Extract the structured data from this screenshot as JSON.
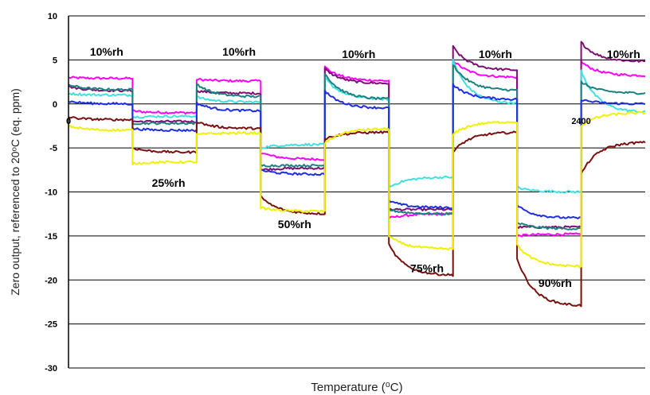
{
  "chart_data": {
    "type": "line",
    "title": "",
    "xlabel": "Temperature (⁰C)",
    "ylabel": "Zero output, referenced to 20ᵒC (eq. ppm)",
    "ylim": [
      -30,
      10
    ],
    "yticks": [
      10,
      5,
      0,
      -5,
      -10,
      -15,
      -20,
      -25,
      -30
    ],
    "xlim": [
      0,
      2700
    ],
    "x_tick_labels": [
      {
        "x": 0,
        "label": "0"
      },
      {
        "x": 2400,
        "label": "2400"
      }
    ],
    "grid": "horizontal",
    "legend": "none",
    "annotations": [
      {
        "text": "10%rh",
        "x": 100,
        "y": 5.5
      },
      {
        "text": "10%rh",
        "x": 720,
        "y": 5.5
      },
      {
        "text": "10%rh",
        "x": 1280,
        "y": 5.2
      },
      {
        "text": "10%rh",
        "x": 1920,
        "y": 5.2
      },
      {
        "text": "10%rh",
        "x": 2520,
        "y": 5.2
      },
      {
        "text": "25%rh",
        "x": 390,
        "y": -9.4
      },
      {
        "text": "50%rh",
        "x": 980,
        "y": -14.1
      },
      {
        "text": "75%rh",
        "x": 1600,
        "y": -19.1
      },
      {
        "text": "90%rh",
        "x": 2200,
        "y": -20.8
      }
    ],
    "segments": [
      {
        "start": 0,
        "end": 300,
        "rh": "10%rh"
      },
      {
        "start": 300,
        "end": 600,
        "rh": "25%rh"
      },
      {
        "start": 600,
        "end": 900,
        "rh": "10%rh"
      },
      {
        "start": 900,
        "end": 1200,
        "rh": "50%rh"
      },
      {
        "start": 1200,
        "end": 1500,
        "rh": "10%rh"
      },
      {
        "start": 1500,
        "end": 1800,
        "rh": "75%rh"
      },
      {
        "start": 1800,
        "end": 2100,
        "rh": "10%rh"
      },
      {
        "start": 2100,
        "end": 2400,
        "rh": "90%rh"
      },
      {
        "start": 2400,
        "end": 2700,
        "rh": "10%rh"
      }
    ],
    "series": [
      {
        "color": "#ff00ff",
        "levels": [
          {
            "s": 3.0,
            "e": 2.9
          },
          {
            "s": -0.8,
            "e": -1.0
          },
          {
            "s": 2.8,
            "e": 2.6
          },
          {
            "s": -5.5,
            "e": -6.3
          },
          {
            "s": 4.2,
            "e": 2.6
          },
          {
            "s": -13.0,
            "e": -12.5
          },
          {
            "s": 5.0,
            "e": 3.0
          },
          {
            "s": -15.0,
            "e": -14.8
          },
          {
            "s": 4.8,
            "e": 3.2
          }
        ]
      },
      {
        "color": "#7b1070",
        "levels": [
          {
            "s": 2.0,
            "e": 1.5
          },
          {
            "s": -2.0,
            "e": -2.0
          },
          {
            "s": 1.5,
            "e": 1.2
          },
          {
            "s": -7.5,
            "e": -7.3
          },
          {
            "s": 4.0,
            "e": 2.3
          },
          {
            "s": -12.0,
            "e": -12.0
          },
          {
            "s": 6.5,
            "e": 3.8
          },
          {
            "s": -14.0,
            "e": -14.0
          },
          {
            "s": 7.0,
            "e": 4.8
          }
        ]
      },
      {
        "color": "#40e0e0",
        "levels": [
          {
            "s": 1.2,
            "e": 1.0
          },
          {
            "s": -1.5,
            "e": -1.4
          },
          {
            "s": 0.8,
            "e": 0.2
          },
          {
            "s": -5.0,
            "e": -4.6
          },
          {
            "s": 3.0,
            "e": 0.5
          },
          {
            "s": -9.5,
            "e": -8.3
          },
          {
            "s": 5.0,
            "e": 0.0
          },
          {
            "s": -9.5,
            "e": -10.0
          },
          {
            "s": 3.8,
            "e": -1.0
          }
        ]
      },
      {
        "color": "#1e8080",
        "levels": [
          {
            "s": 2.2,
            "e": 1.6
          },
          {
            "s": -2.2,
            "e": -2.2
          },
          {
            "s": 2.3,
            "e": 0.8
          },
          {
            "s": -7.0,
            "e": -7.0
          },
          {
            "s": 3.5,
            "e": 0.5
          },
          {
            "s": -12.0,
            "e": -12.5
          },
          {
            "s": 4.5,
            "e": 1.5
          },
          {
            "s": -13.5,
            "e": -14.2
          },
          {
            "s": 2.5,
            "e": 1.2
          }
        ]
      },
      {
        "color": "#1f2ee0",
        "levels": [
          {
            "s": 0.3,
            "e": 0.0
          },
          {
            "s": -2.8,
            "e": -3.0
          },
          {
            "s": 0.1,
            "e": -0.8
          },
          {
            "s": -7.5,
            "e": -8.0
          },
          {
            "s": 1.5,
            "e": -0.5
          },
          {
            "s": -11.0,
            "e": -11.8
          },
          {
            "s": 2.2,
            "e": 0.5
          },
          {
            "s": -11.5,
            "e": -13.0
          },
          {
            "s": 0.5,
            "e": 0.0
          }
        ]
      },
      {
        "color": "#7a1010",
        "levels": [
          {
            "s": -1.5,
            "e": -1.8
          },
          {
            "s": -5.0,
            "e": -5.5
          },
          {
            "s": -2.0,
            "e": -2.8
          },
          {
            "s": -10.5,
            "e": -12.5
          },
          {
            "s": -4.0,
            "e": -3.2
          },
          {
            "s": -16.0,
            "e": -19.5
          },
          {
            "s": -5.5,
            "e": -3.2
          },
          {
            "s": -17.5,
            "e": -23.0
          },
          {
            "s": -8.0,
            "e": -4.3
          }
        ]
      },
      {
        "color": "#f0f000",
        "levels": [
          {
            "s": -2.5,
            "e": -3.0
          },
          {
            "s": -6.8,
            "e": -6.6
          },
          {
            "s": -3.5,
            "e": -3.3
          },
          {
            "s": -11.8,
            "e": -12.2
          },
          {
            "s": -4.5,
            "e": -2.8
          },
          {
            "s": -15.0,
            "e": -16.5
          },
          {
            "s": -3.5,
            "e": -2.0
          },
          {
            "s": -16.0,
            "e": -18.5
          },
          {
            "s": -2.5,
            "e": -1.0
          }
        ]
      }
    ]
  }
}
